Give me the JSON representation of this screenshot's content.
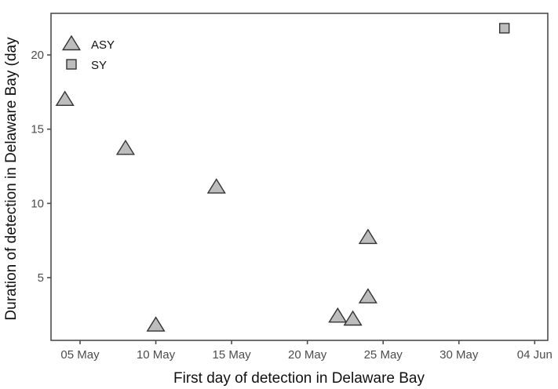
{
  "chart_data": {
    "type": "scatter",
    "title": "",
    "xlabel": "First day of detection in Delaware Bay",
    "ylabel": "Duration of detection in Delaware Bay (days)",
    "ylabel_visible": "Duration of detection in Delaware Bay (day",
    "x_ticks": [
      "05 May",
      "10 May",
      "15 May",
      "20 May",
      "25 May",
      "30 May",
      "04 Jun"
    ],
    "y_ticks": [
      5,
      10,
      15,
      20
    ],
    "xlim": [
      "03 May",
      "08 Jun"
    ],
    "ylim": [
      1.2,
      23
    ],
    "grid": false,
    "legend_position": "top-left inside",
    "legend": [
      {
        "name": "ASY",
        "shape": "triangle"
      },
      {
        "name": "SY",
        "shape": "square"
      }
    ],
    "series": [
      {
        "name": "ASY",
        "shape": "triangle",
        "points": [
          {
            "x": "04 May",
            "y": 17.0
          },
          {
            "x": "08 May",
            "y": 13.7
          },
          {
            "x": "10 May",
            "y": 1.8
          },
          {
            "x": "14 May",
            "y": 11.1
          },
          {
            "x": "22 May",
            "y": 2.4
          },
          {
            "x": "23 May",
            "y": 2.2
          },
          {
            "x": "24 May",
            "y": 3.7
          },
          {
            "x": "24 May",
            "y": 7.7
          }
        ]
      },
      {
        "name": "SY",
        "shape": "square",
        "points": [
          {
            "x": "02 Jun",
            "y": 21.8
          }
        ]
      }
    ],
    "colors": {
      "marker_fill": "#bdbdbd",
      "marker_stroke": "#333333",
      "axis": "#4d4d4d"
    }
  }
}
